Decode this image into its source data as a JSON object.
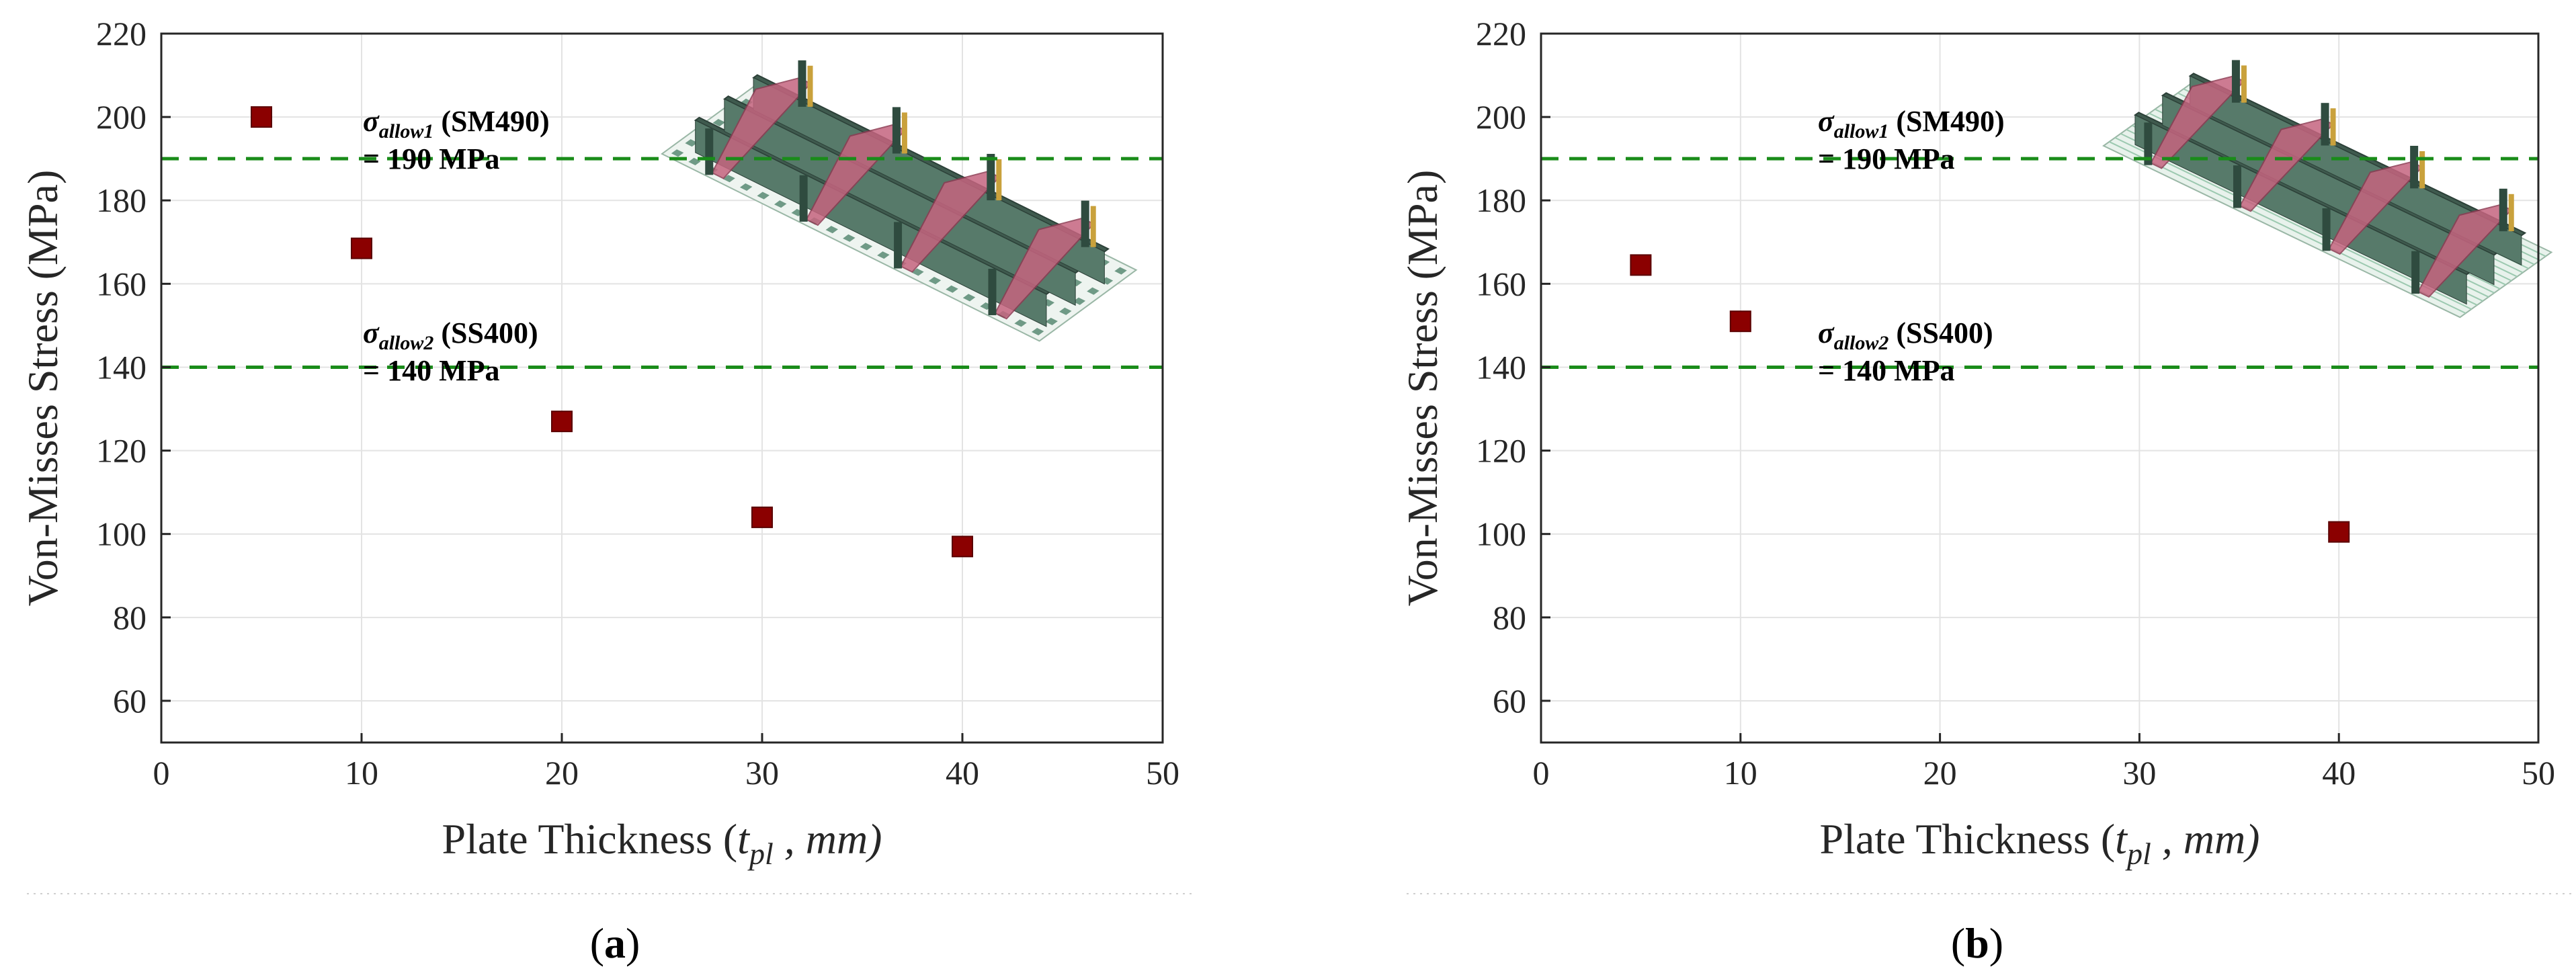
{
  "chart_data": [
    {
      "type": "scatter",
      "panel_label": "a",
      "xlabel": "Plate Thickness (",
      "xlabel_var": "t",
      "xlabel_sub": "pl",
      "xlabel_unit": " , mm)",
      "ylabel": "Von-Misses Stress (MPa)",
      "xlim": [
        0,
        50
      ],
      "ylim": [
        50,
        220
      ],
      "xticks": [
        0,
        10,
        20,
        30,
        40,
        50
      ],
      "yticks": [
        60,
        80,
        100,
        120,
        140,
        160,
        180,
        200,
        220
      ],
      "grid": true,
      "marker_color": "#8B0000",
      "line_color": "#1A8C1A",
      "points": [
        {
          "x": 5,
          "y": 200
        },
        {
          "x": 10,
          "y": 168.5
        },
        {
          "x": 20,
          "y": 127
        },
        {
          "x": 30,
          "y": 104
        },
        {
          "x": 40,
          "y": 97
        }
      ],
      "reference_lines": [
        {
          "y": 190,
          "symbol": "σ",
          "sub": "allow1",
          "label": " (SM490)",
          "value_text": "= 190 MPa"
        },
        {
          "y": 140,
          "symbol": "σ",
          "sub": "allow2",
          "label": " (SS400)",
          "value_text": "= 140 MPa"
        }
      ],
      "inset": "plate-model-grid-cutouts"
    },
    {
      "type": "scatter",
      "panel_label": "b",
      "xlabel": "Plate Thickness (",
      "xlabel_var": "t",
      "xlabel_sub": "pl",
      "xlabel_unit": " , mm)",
      "ylabel": "Von-Misses Stress (MPa)",
      "xlim": [
        0,
        50
      ],
      "ylim": [
        50,
        220
      ],
      "xticks": [
        0,
        10,
        20,
        30,
        40,
        50
      ],
      "yticks": [
        60,
        80,
        100,
        120,
        140,
        160,
        180,
        200,
        220
      ],
      "grid": true,
      "marker_color": "#8B0000",
      "line_color": "#1A8C1A",
      "points": [
        {
          "x": 5,
          "y": 164.5
        },
        {
          "x": 10,
          "y": 151
        },
        {
          "x": 40,
          "y": 100.5
        }
      ],
      "reference_lines": [
        {
          "y": 190,
          "symbol": "σ",
          "sub": "allow1",
          "label": " (SM490)",
          "value_text": "= 190 MPa"
        },
        {
          "y": 140,
          "symbol": "σ",
          "sub": "allow2",
          "label": " (SS400)",
          "value_text": "= 140 MPa"
        }
      ],
      "inset": "plate-model-striped"
    }
  ]
}
